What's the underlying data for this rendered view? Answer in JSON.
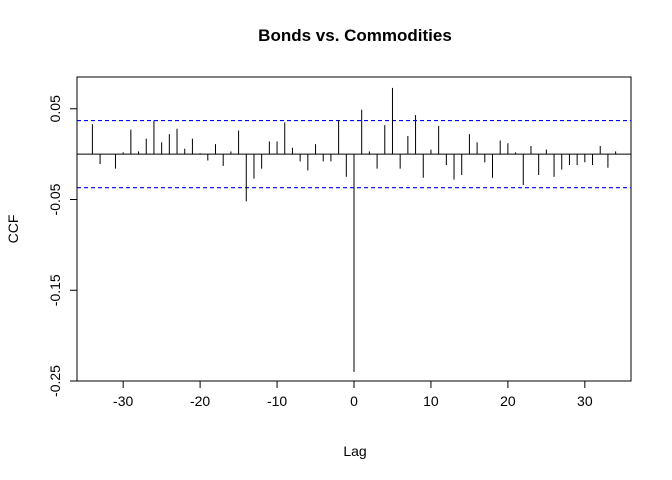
{
  "chart_data": {
    "type": "bar",
    "title": "Bonds vs. Commodities",
    "xlabel": "Lag",
    "ylabel": "CCF",
    "xlim": [
      -36,
      36
    ],
    "ylim": [
      -0.25,
      0.085
    ],
    "xticks": [
      -30,
      -20,
      -10,
      0,
      10,
      20,
      30
    ],
    "yticks": [
      0.05,
      -0.05,
      -0.15,
      -0.25
    ],
    "ytick_labels": [
      "0.05",
      "-0.05",
      "-0.15",
      "-0.25"
    ],
    "confidence_bounds": [
      0.037,
      -0.037
    ],
    "colors": {
      "bars": "#000000",
      "bounds": "#0000ff",
      "zero_line": "#000000"
    },
    "x": [
      -34,
      -33,
      -32,
      -31,
      -30,
      -29,
      -28,
      -27,
      -26,
      -25,
      -24,
      -23,
      -22,
      -21,
      -20,
      -19,
      -18,
      -17,
      -16,
      -15,
      -14,
      -13,
      -12,
      -11,
      -10,
      -9,
      -8,
      -7,
      -6,
      -5,
      -4,
      -3,
      -2,
      -1,
      0,
      1,
      2,
      3,
      4,
      5,
      6,
      7,
      8,
      9,
      10,
      11,
      12,
      13,
      14,
      15,
      16,
      17,
      18,
      19,
      20,
      21,
      22,
      23,
      24,
      25,
      26,
      27,
      28,
      29,
      30,
      31,
      32,
      33,
      34
    ],
    "values": [
      0.033,
      -0.011,
      0.0,
      -0.016,
      0.002,
      0.027,
      0.003,
      0.017,
      0.037,
      0.013,
      0.022,
      0.028,
      0.006,
      0.017,
      0.001,
      -0.007,
      0.011,
      -0.013,
      0.003,
      0.026,
      -0.052,
      -0.027,
      -0.016,
      0.014,
      0.014,
      0.035,
      0.007,
      -0.008,
      -0.018,
      0.011,
      -0.008,
      -0.008,
      0.037,
      -0.025,
      -0.24,
      0.049,
      0.003,
      -0.016,
      0.032,
      0.073,
      -0.016,
      0.02,
      0.043,
      -0.026,
      0.005,
      0.031,
      -0.012,
      -0.028,
      -0.023,
      0.022,
      0.013,
      -0.009,
      -0.026,
      0.015,
      0.012,
      0.002,
      -0.034,
      0.009,
      -0.023,
      0.005,
      -0.025,
      -0.017,
      -0.012,
      -0.012,
      -0.009,
      -0.012,
      0.009,
      -0.015,
      0.003
    ]
  }
}
